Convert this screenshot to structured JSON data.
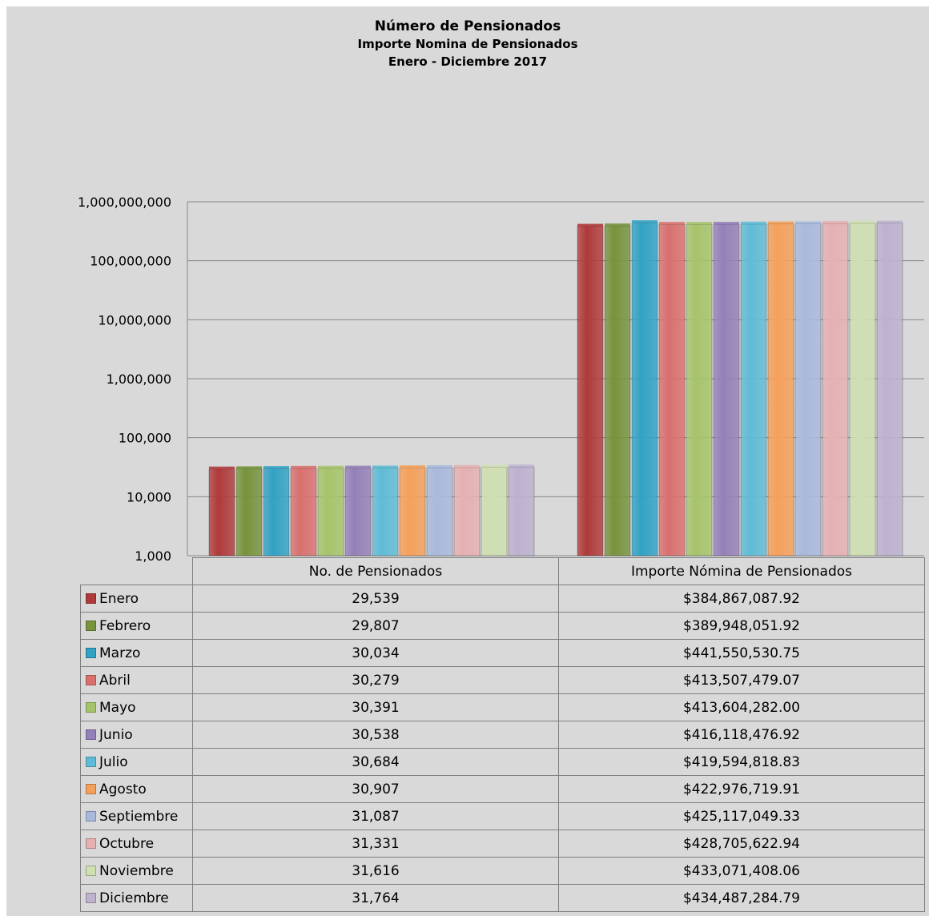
{
  "chart_data": {
    "type": "bar",
    "title": "Número de Pensionados",
    "subtitle": "Importe Nomina  de Pensionados",
    "period": "Enero  - Diciembre 2017",
    "yscale": "log",
    "ylim": [
      1000,
      1000000000
    ],
    "ytick_labels": [
      "1,000,000,000",
      "100,000,000",
      "10,000,000",
      "1,000,000",
      "100,000",
      "10,000",
      "1,000"
    ],
    "categories": [
      "No. de Pensionados",
      "Importe Nómina de Pensionados"
    ],
    "grid": true,
    "series": [
      {
        "name": "Enero",
        "color": "#b03a3a",
        "values": [
          29539,
          384867087.92
        ],
        "labels": [
          "29,539",
          "$384,867,087.92"
        ]
      },
      {
        "name": "Febrero",
        "color": "#77933c",
        "values": [
          29807,
          389948051.92
        ],
        "labels": [
          "29,807",
          "$389,948,051.92"
        ]
      },
      {
        "name": "Marzo",
        "color": "#31a2c4",
        "values": [
          30034,
          441550530.75
        ],
        "labels": [
          "30,034",
          "$441,550,530.75"
        ]
      },
      {
        "name": "Abril",
        "color": "#d9706e",
        "values": [
          30279,
          413507479.07
        ],
        "labels": [
          "30,279",
          "$413,507,479.07"
        ]
      },
      {
        "name": "Mayo",
        "color": "#a6c46a",
        "values": [
          30391,
          413604282.0
        ],
        "labels": [
          "30,391",
          "$413,604,282.00"
        ]
      },
      {
        "name": "Junio",
        "color": "#9480b8",
        "values": [
          30538,
          416118476.92
        ],
        "labels": [
          "30,538",
          "$416,118,476.92"
        ]
      },
      {
        "name": "Julio",
        "color": "#5fbcd6",
        "values": [
          30684,
          419594818.83
        ],
        "labels": [
          "30,684",
          "$419,594,818.83"
        ]
      },
      {
        "name": "Agosto",
        "color": "#f5a05a",
        "values": [
          30907,
          422976719.91
        ],
        "labels": [
          "30,907",
          "$422,976,719.91"
        ]
      },
      {
        "name": "Septiembre",
        "color": "#a9b9dc",
        "values": [
          31087,
          425117049.33
        ],
        "labels": [
          "31,087",
          "$425,117,049.33"
        ]
      },
      {
        "name": "Octubre",
        "color": "#e6b0b1",
        "values": [
          31331,
          428705622.94
        ],
        "labels": [
          "31,331",
          "$428,705,622.94"
        ]
      },
      {
        "name": "Noviembre",
        "color": "#cfdfb2",
        "values": [
          31616,
          433071408.06
        ],
        "labels": [
          "31,616",
          "$433,071,408.06"
        ]
      },
      {
        "name": "Diciembre",
        "color": "#bdb1cf",
        "values": [
          31764,
          434487284.79
        ],
        "labels": [
          "31,764",
          "$434,487,284.79"
        ]
      }
    ]
  }
}
